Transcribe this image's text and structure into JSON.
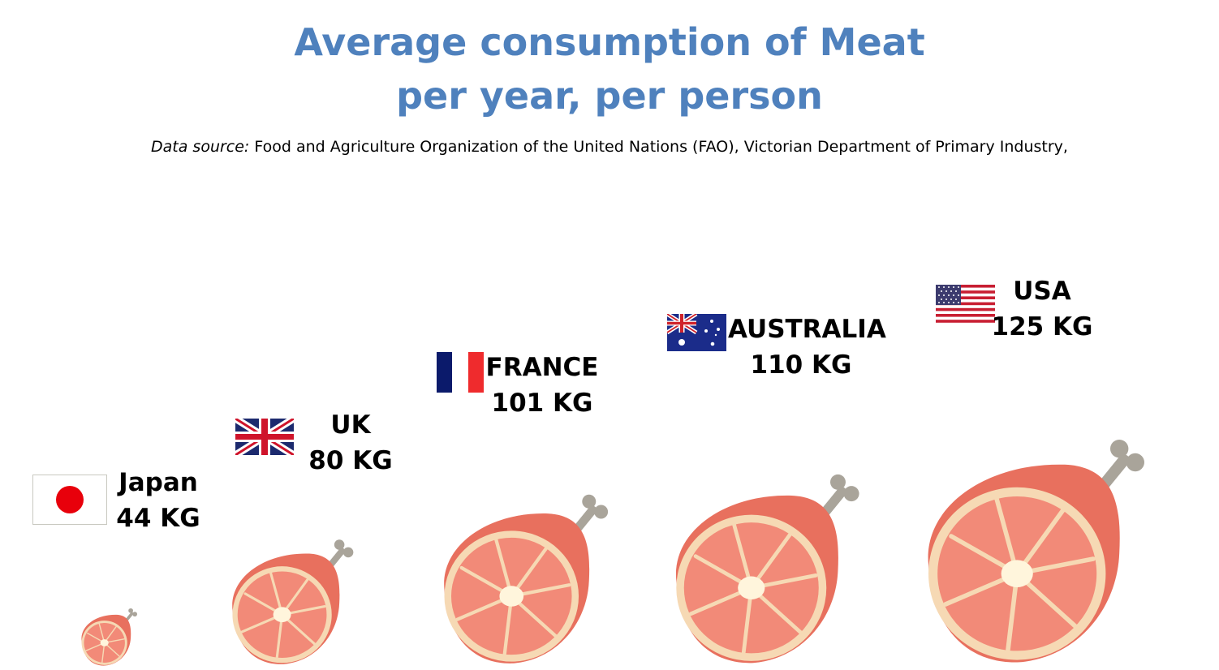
{
  "title_line1": "Average consumption of Meat",
  "title_line2": "per year, per person",
  "source": {
    "label": "Data source:",
    "text": " Food and Agriculture Organization of the United Nations (FAO), Victorian Department of Primary Industry,"
  },
  "chart_data": {
    "type": "bar",
    "unit": "KG",
    "categories": [
      "Japan",
      "UK",
      "FRANCE",
      "AUSTRALIA",
      "USA"
    ],
    "values": [
      44,
      80,
      101,
      110,
      125
    ],
    "value_labels": [
      "44 KG",
      "80 KG",
      "101 KG",
      "110 KG",
      "125 KG"
    ],
    "mark": "ham-pictogram",
    "flags": [
      "japan-flag",
      "uk-flag",
      "france-flag",
      "australia-flag",
      "usa-flag"
    ]
  },
  "colors": {
    "title": "#4f81bd",
    "ham_rind": "#e8705e",
    "ham_meat": "#f28a78",
    "ham_fat": "#f6d9b4",
    "bone": "#a9a49a"
  }
}
